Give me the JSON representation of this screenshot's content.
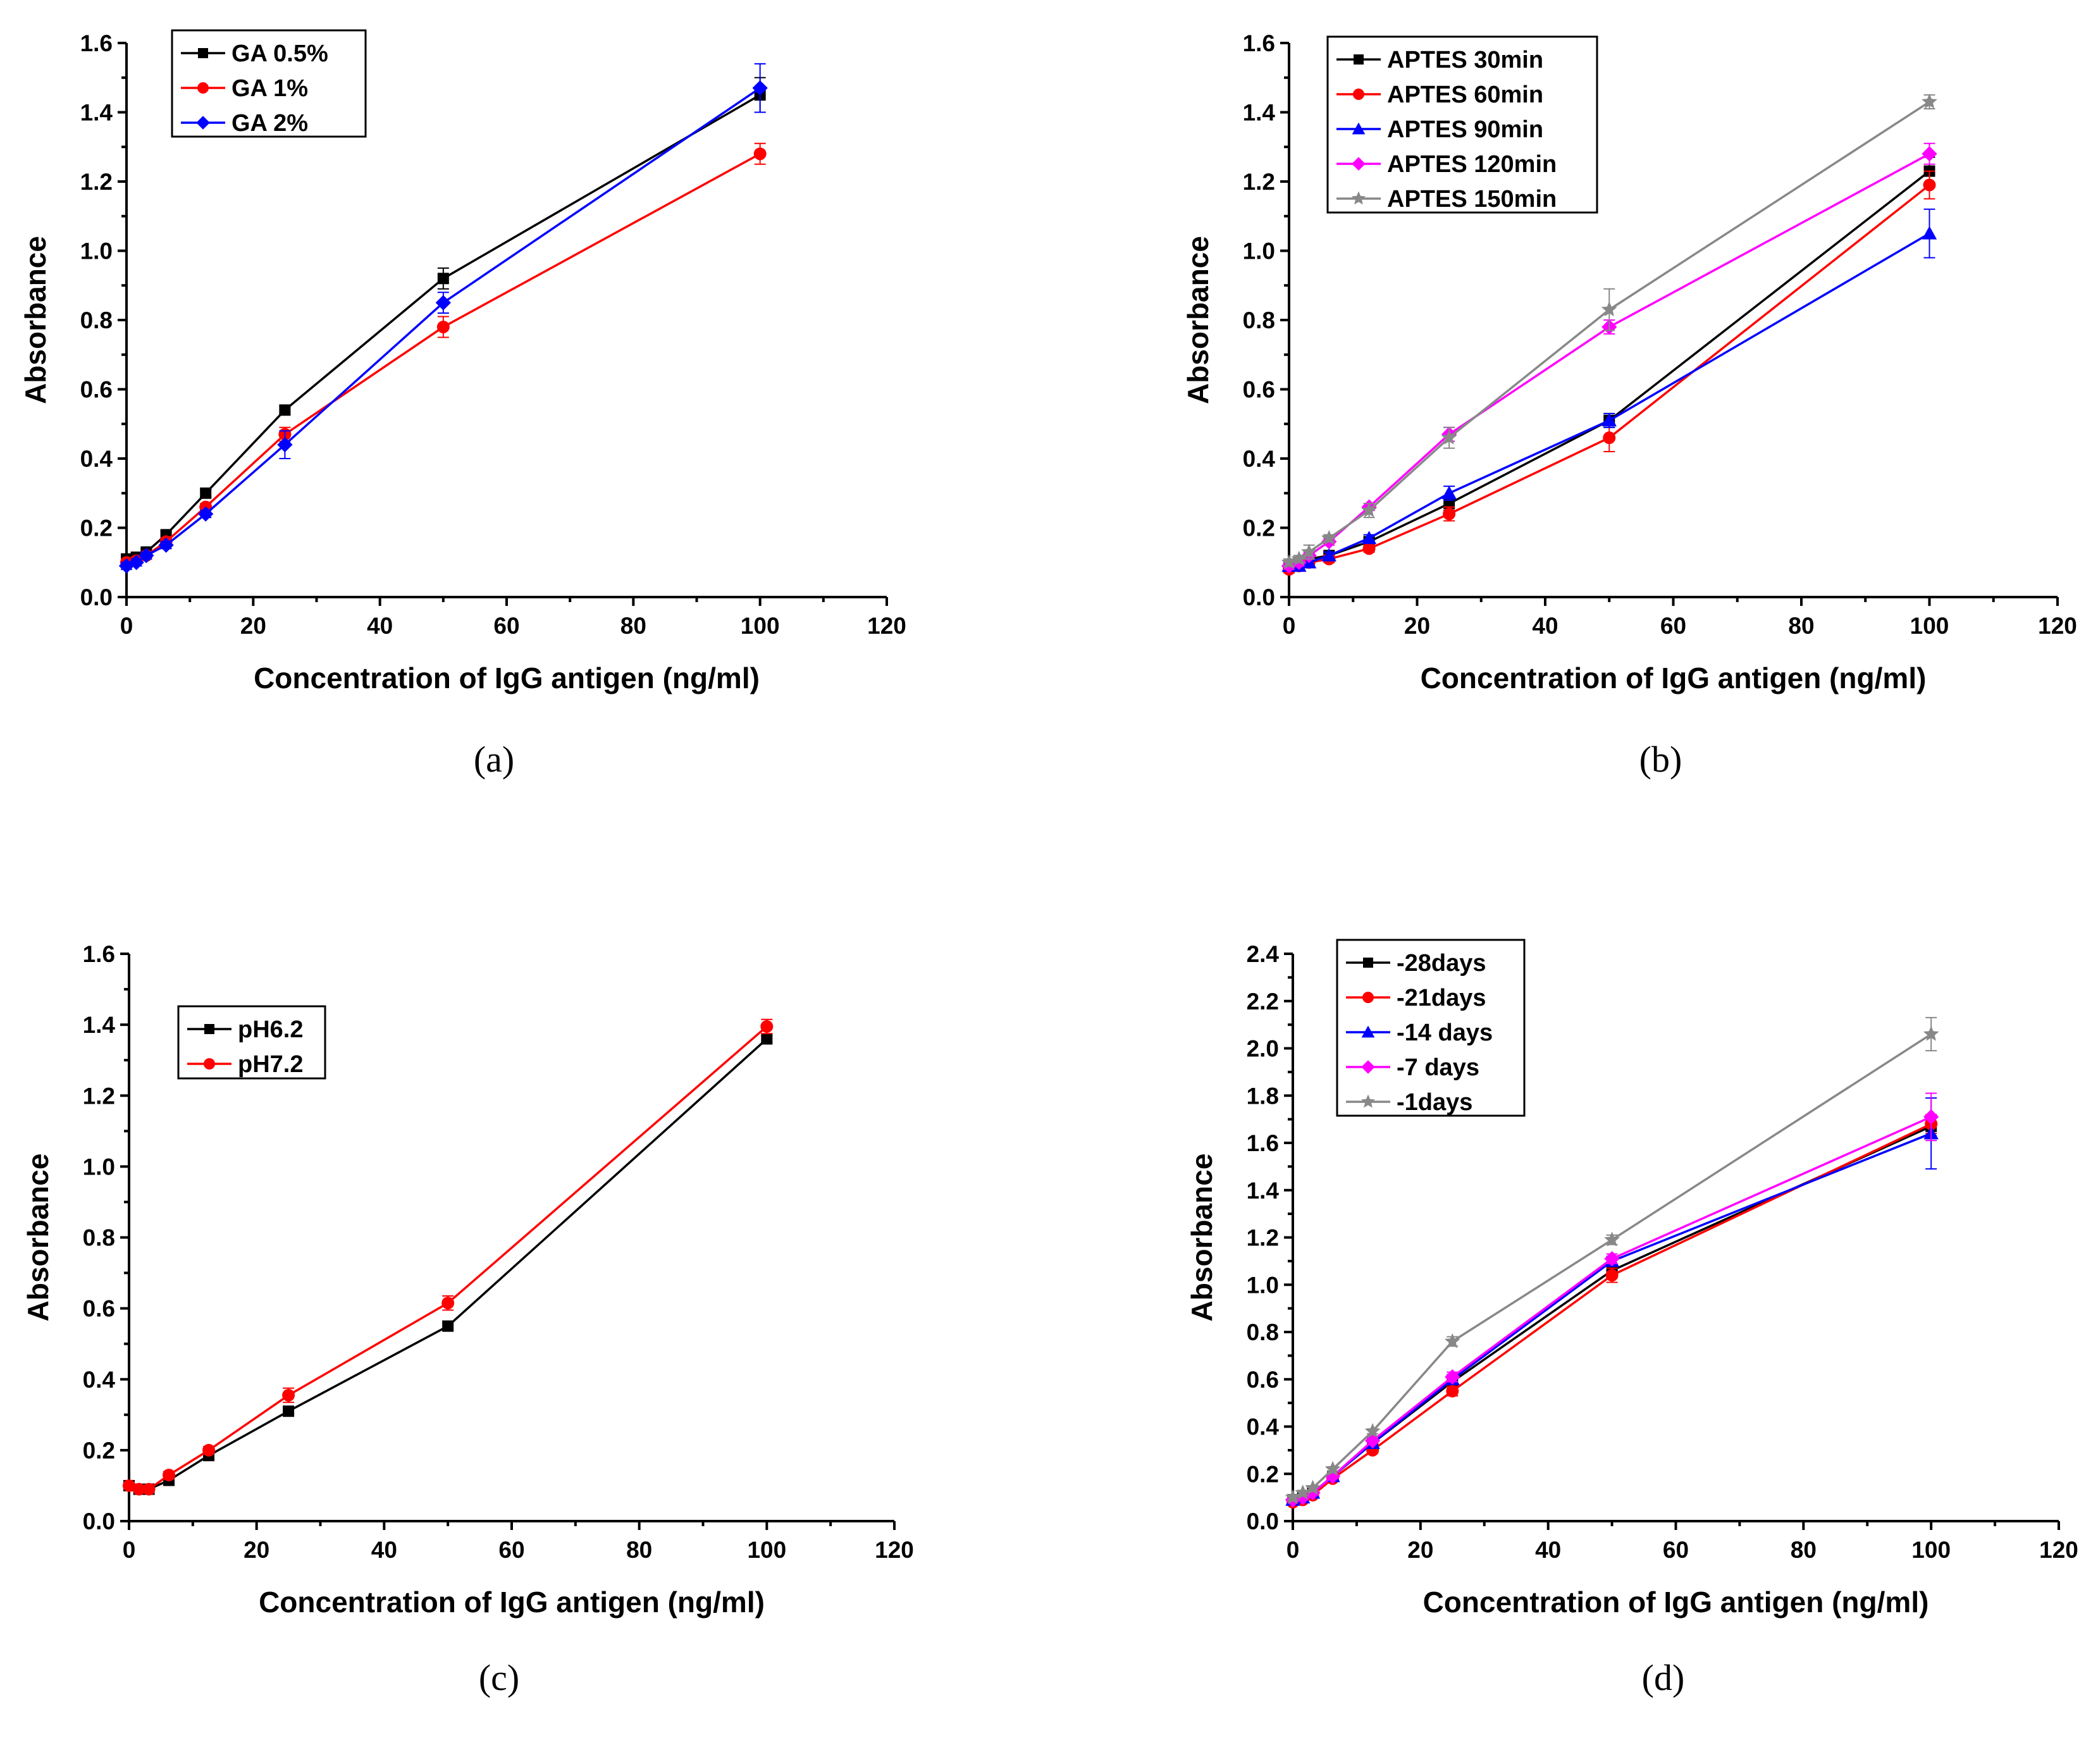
{
  "figure": {
    "panels": [
      {
        "label": "(a)"
      },
      {
        "label": "(b)"
      },
      {
        "label": "(c)"
      },
      {
        "label": "(d)"
      }
    ]
  },
  "chart_data": [
    {
      "id": "a",
      "type": "line",
      "panel_label": "(a)",
      "title": "",
      "xlabel": "Concentration of IgG antigen (ng/ml)",
      "ylabel": "Absorbance",
      "xlim": [
        0,
        120
      ],
      "ylim": [
        0,
        1.6
      ],
      "xticks": [
        0,
        20,
        40,
        60,
        80,
        100,
        120
      ],
      "yticks": [
        0.0,
        0.2,
        0.4,
        0.6,
        0.8,
        1.0,
        1.2,
        1.4,
        1.6
      ],
      "legend_position": "top-left",
      "x": [
        0,
        1.5625,
        3.125,
        6.25,
        12.5,
        25,
        50,
        100
      ],
      "series": [
        {
          "name": "GA 0.5%",
          "color": "#000000",
          "marker": "square",
          "values": [
            0.11,
            0.115,
            0.13,
            0.18,
            0.3,
            0.54,
            0.92,
            1.45
          ],
          "errors": [
            0.01,
            0.01,
            0.01,
            0.01,
            0.01,
            0.01,
            0.03,
            0.05
          ]
        },
        {
          "name": "GA 1%",
          "color": "#ff0000",
          "marker": "circle",
          "values": [
            0.1,
            0.105,
            0.12,
            0.16,
            0.26,
            0.47,
            0.78,
            1.28
          ],
          "errors": [
            0.01,
            0.01,
            0.01,
            0.01,
            0.01,
            0.02,
            0.03,
            0.03
          ]
        },
        {
          "name": "GA 2%",
          "color": "#0000ff",
          "marker": "diamond",
          "values": [
            0.09,
            0.1,
            0.12,
            0.15,
            0.24,
            0.44,
            0.85,
            1.47
          ],
          "errors": [
            0.01,
            0.01,
            0.01,
            0.01,
            0.01,
            0.04,
            0.03,
            0.07
          ]
        }
      ]
    },
    {
      "id": "b",
      "type": "line",
      "panel_label": "(b)",
      "title": "",
      "xlabel": "Concentration of IgG antigen (ng/ml)",
      "ylabel": "Absorbance",
      "xlim": [
        0,
        120
      ],
      "ylim": [
        0,
        1.6
      ],
      "xticks": [
        0,
        20,
        40,
        60,
        80,
        100,
        120
      ],
      "yticks": [
        0.0,
        0.2,
        0.4,
        0.6,
        0.8,
        1.0,
        1.2,
        1.4,
        1.6
      ],
      "legend_position": "top-left",
      "x": [
        0,
        1.5625,
        3.125,
        6.25,
        12.5,
        25,
        50,
        100
      ],
      "series": [
        {
          "name": "APTES 30min",
          "color": "#000000",
          "marker": "square",
          "values": [
            0.09,
            0.1,
            0.11,
            0.12,
            0.16,
            0.27,
            0.51,
            1.23
          ],
          "errors": [
            0.01,
            0.01,
            0.01,
            0.01,
            0.01,
            0.02,
            0.02,
            0.04
          ]
        },
        {
          "name": "APTES 60min",
          "color": "#ff0000",
          "marker": "circle",
          "values": [
            0.08,
            0.09,
            0.1,
            0.11,
            0.14,
            0.24,
            0.46,
            1.19
          ],
          "errors": [
            0.01,
            0.01,
            0.01,
            0.01,
            0.01,
            0.02,
            0.04,
            0.04
          ]
        },
        {
          "name": "APTES 90min",
          "color": "#0000ff",
          "marker": "triangle",
          "values": [
            0.09,
            0.09,
            0.1,
            0.12,
            0.17,
            0.3,
            0.51,
            1.05
          ],
          "errors": [
            0.01,
            0.01,
            0.01,
            0.01,
            0.01,
            0.02,
            0.02,
            0.07
          ]
        },
        {
          "name": "APTES 120min",
          "color": "#ff00ff",
          "marker": "diamond",
          "values": [
            0.09,
            0.1,
            0.12,
            0.16,
            0.26,
            0.47,
            0.78,
            1.28
          ],
          "errors": [
            0.01,
            0.01,
            0.01,
            0.01,
            0.01,
            0.02,
            0.02,
            0.03
          ]
        },
        {
          "name": "APTES 150min",
          "color": "#888888",
          "marker": "star",
          "values": [
            0.1,
            0.11,
            0.13,
            0.17,
            0.25,
            0.46,
            0.83,
            1.43
          ],
          "errors": [
            0.01,
            0.01,
            0.02,
            0.01,
            0.02,
            0.03,
            0.06,
            0.02
          ]
        }
      ]
    },
    {
      "id": "c",
      "type": "line",
      "panel_label": "(c)",
      "title": "",
      "xlabel": "Concentration of IgG antigen (ng/ml)",
      "ylabel": "Absorbance",
      "xlim": [
        0,
        120
      ],
      "ylim": [
        0,
        1.6
      ],
      "xticks": [
        0,
        20,
        40,
        60,
        80,
        100,
        120
      ],
      "yticks": [
        0.0,
        0.2,
        0.4,
        0.6,
        0.8,
        1.0,
        1.2,
        1.4,
        1.6
      ],
      "legend_position": "top-left",
      "x": [
        0,
        1.5625,
        3.125,
        6.25,
        12.5,
        25,
        50,
        100
      ],
      "series": [
        {
          "name": "pH6.2",
          "color": "#000000",
          "marker": "square",
          "values": [
            0.1,
            0.09,
            0.09,
            0.115,
            0.185,
            0.31,
            0.55,
            1.36
          ],
          "errors": [
            0.005,
            0.005,
            0.005,
            0.01,
            0.01,
            0.01,
            0.01,
            0.01
          ]
        },
        {
          "name": "pH7.2",
          "color": "#ff0000",
          "marker": "circle",
          "values": [
            0.1,
            0.09,
            0.09,
            0.13,
            0.2,
            0.355,
            0.615,
            1.395
          ],
          "errors": [
            0.005,
            0.005,
            0.005,
            0.01,
            0.01,
            0.02,
            0.02,
            0.02
          ]
        }
      ]
    },
    {
      "id": "d",
      "type": "line",
      "panel_label": "(d)",
      "title": "",
      "xlabel": "Concentration of IgG antigen (ng/ml)",
      "ylabel": "Absorbance",
      "xlim": [
        0,
        120
      ],
      "ylim": [
        0,
        2.4
      ],
      "xticks": [
        0,
        20,
        40,
        60,
        80,
        100,
        120
      ],
      "yticks": [
        0.0,
        0.2,
        0.4,
        0.6,
        0.8,
        1.0,
        1.2,
        1.4,
        1.6,
        1.8,
        2.0,
        2.2,
        2.4
      ],
      "legend_position": "top-left",
      "x": [
        0,
        1.5625,
        3.125,
        6.25,
        12.5,
        25,
        50,
        100
      ],
      "series": [
        {
          "name": "-28days",
          "color": "#000000",
          "marker": "square",
          "values": [
            0.09,
            0.1,
            0.12,
            0.19,
            0.33,
            0.59,
            1.06,
            1.67
          ],
          "errors": [
            0.01,
            0.01,
            0.01,
            0.01,
            0.01,
            0.02,
            0.02,
            0.04
          ]
        },
        {
          "name": "-21days",
          "color": "#ff0000",
          "marker": "circle",
          "values": [
            0.08,
            0.09,
            0.11,
            0.18,
            0.3,
            0.55,
            1.04,
            1.68
          ],
          "errors": [
            0.01,
            0.01,
            0.01,
            0.01,
            0.01,
            0.02,
            0.03,
            0.04
          ]
        },
        {
          "name": "-14 days",
          "color": "#0000ff",
          "marker": "triangle",
          "values": [
            0.09,
            0.1,
            0.12,
            0.19,
            0.33,
            0.6,
            1.1,
            1.64
          ],
          "errors": [
            0.01,
            0.01,
            0.01,
            0.01,
            0.01,
            0.02,
            0.02,
            0.15
          ]
        },
        {
          "name": "-7 days",
          "color": "#ff00ff",
          "marker": "diamond",
          "values": [
            0.09,
            0.1,
            0.12,
            0.19,
            0.34,
            0.61,
            1.11,
            1.71
          ],
          "errors": [
            0.01,
            0.01,
            0.01,
            0.01,
            0.01,
            0.02,
            0.02,
            0.1
          ]
        },
        {
          "name": "-1days",
          "color": "#888888",
          "marker": "star",
          "values": [
            0.1,
            0.12,
            0.14,
            0.22,
            0.38,
            0.76,
            1.19,
            2.06
          ],
          "errors": [
            0.01,
            0.01,
            0.01,
            0.01,
            0.01,
            0.02,
            0.02,
            0.07
          ]
        }
      ]
    }
  ]
}
